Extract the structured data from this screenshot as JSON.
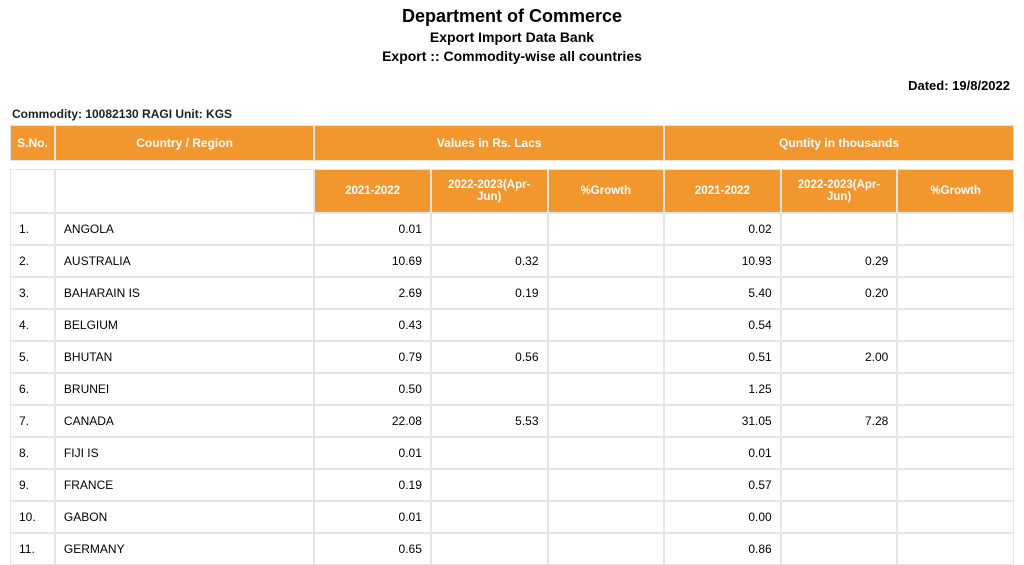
{
  "header": {
    "title1": "Department of Commerce",
    "title2": "Export Import Data Bank",
    "title3": "Export :: Commodity-wise all countries"
  },
  "dated_label": "Dated: 19/8/2022",
  "commodity_label": "Commodity:  10082130 RAGI Unit: KGS",
  "group_headers": {
    "sno": "S.No.",
    "country": "Country / Region",
    "values": "Values in Rs. Lacs",
    "quantity": "Quntity in thousands"
  },
  "sub_headers": {
    "y1": "2021-2022",
    "y2": "2022-2023(Apr-Jun)",
    "growth": "%Growth"
  },
  "rows": [
    {
      "sno": "1.",
      "country": "ANGOLA",
      "v1": "0.01",
      "v2": "",
      "vg": "",
      "q1": "0.02",
      "q2": "",
      "qg": ""
    },
    {
      "sno": "2.",
      "country": "AUSTRALIA",
      "v1": "10.69",
      "v2": "0.32",
      "vg": "",
      "q1": "10.93",
      "q2": "0.29",
      "qg": ""
    },
    {
      "sno": "3.",
      "country": "BAHARAIN IS",
      "v1": "2.69",
      "v2": "0.19",
      "vg": "",
      "q1": "5.40",
      "q2": "0.20",
      "qg": ""
    },
    {
      "sno": "4.",
      "country": "BELGIUM",
      "v1": "0.43",
      "v2": "",
      "vg": "",
      "q1": "0.54",
      "q2": "",
      "qg": ""
    },
    {
      "sno": "5.",
      "country": "BHUTAN",
      "v1": "0.79",
      "v2": "0.56",
      "vg": "",
      "q1": "0.51",
      "q2": "2.00",
      "qg": ""
    },
    {
      "sno": "6.",
      "country": "BRUNEI",
      "v1": "0.50",
      "v2": "",
      "vg": "",
      "q1": "1.25",
      "q2": "",
      "qg": ""
    },
    {
      "sno": "7.",
      "country": "CANADA",
      "v1": "22.08",
      "v2": "5.53",
      "vg": "",
      "q1": "31.05",
      "q2": "7.28",
      "qg": ""
    },
    {
      "sno": "8.",
      "country": "FIJI IS",
      "v1": "0.01",
      "v2": "",
      "vg": "",
      "q1": "0.01",
      "q2": "",
      "qg": ""
    },
    {
      "sno": "9.",
      "country": "FRANCE",
      "v1": "0.19",
      "v2": "",
      "vg": "",
      "q1": "0.57",
      "q2": "",
      "qg": ""
    },
    {
      "sno": "10.",
      "country": "GABON",
      "v1": "0.01",
      "v2": "",
      "vg": "",
      "q1": "0.00",
      "q2": "",
      "qg": ""
    },
    {
      "sno": "11.",
      "country": "GERMANY",
      "v1": "0.65",
      "v2": "",
      "vg": "",
      "q1": "0.86",
      "q2": "",
      "qg": ""
    }
  ],
  "style": {
    "header_bg": "#f2962e",
    "header_fg": "#ffffff",
    "border_color": "#e4e4e4",
    "row_bg": "#ffffff"
  }
}
